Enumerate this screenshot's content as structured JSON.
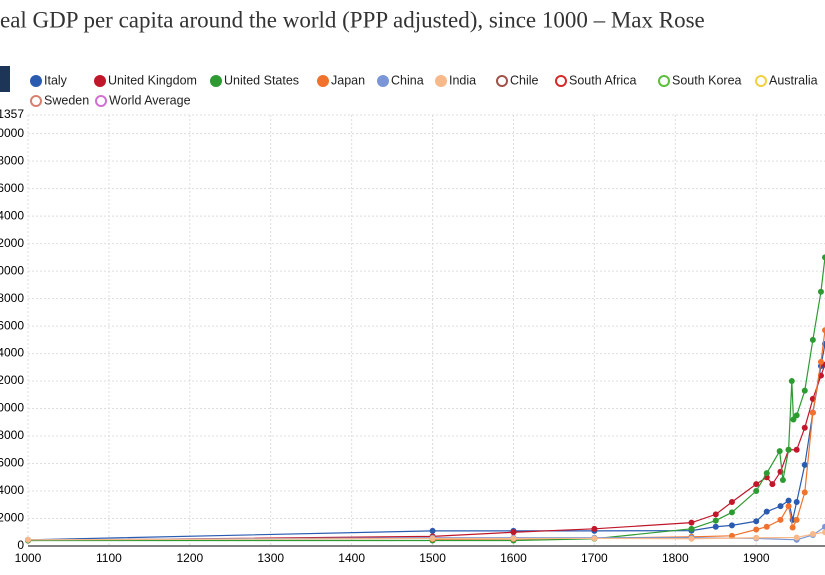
{
  "chart_data": {
    "type": "line",
    "title": "eal GDP per capita around the world (PPP adjusted), since 1000 – Max Rose",
    "xlim": [
      1000,
      1985
    ],
    "xticks": [
      1000,
      1100,
      1200,
      1300,
      1400,
      1500,
      1600,
      1700,
      1800,
      1900
    ],
    "ylim": [
      0,
      31357
    ],
    "yticks": [
      0,
      {
        "value": 2000,
        "label": "2000"
      },
      {
        "value": 4000,
        "label": "4000"
      },
      {
        "value": 6000,
        "label": "6000"
      },
      {
        "value": 8000,
        "label": "8000"
      },
      {
        "value": 10000,
        "label": "0000"
      },
      {
        "value": 12000,
        "label": "2000"
      },
      {
        "value": 14000,
        "label": "4000"
      },
      {
        "value": 16000,
        "label": "6000"
      },
      {
        "value": 18000,
        "label": "8000"
      },
      {
        "value": 20000,
        "label": "0000"
      },
      {
        "value": 22000,
        "label": "2000"
      },
      {
        "value": 24000,
        "label": "4000"
      },
      {
        "value": 26000,
        "label": "6000"
      },
      {
        "value": 28000,
        "label": "8000"
      },
      {
        "value": 30000,
        "label": "0000"
      },
      {
        "value": 31357,
        "label": "1357"
      }
    ],
    "grid": true,
    "series": [
      {
        "name": "Italy",
        "color": "#2a5bb0",
        "disabled": false,
        "x": [
          1000,
          1500,
          1600,
          1700,
          1820,
          1850,
          1870,
          1900,
          1913,
          1930,
          1940,
          1945,
          1950,
          1960,
          1970,
          1980,
          1985
        ],
        "values": [
          450,
          1100,
          1100,
          1100,
          1117,
          1400,
          1500,
          1800,
          2500,
          2900,
          3300,
          1900,
          3200,
          5900,
          9700,
          13100,
          14700
        ]
      },
      {
        "name": "United Kingdom",
        "color": "#c0172a",
        "disabled": false,
        "x": [
          1000,
          1500,
          1600,
          1700,
          1820,
          1850,
          1870,
          1900,
          1913,
          1920,
          1930,
          1940,
          1950,
          1960,
          1970,
          1980,
          1985
        ],
        "values": [
          400,
          700,
          1000,
          1250,
          1700,
          2300,
          3200,
          4500,
          5000,
          4500,
          5400,
          7000,
          7000,
          8600,
          10700,
          12400,
          13200
        ]
      },
      {
        "name": "United States",
        "color": "#2e9b32",
        "disabled": false,
        "x": [
          1000,
          1500,
          1600,
          1700,
          1820,
          1850,
          1870,
          1900,
          1913,
          1929,
          1933,
          1940,
          1944,
          1946,
          1950,
          1960,
          1970,
          1980,
          1985
        ],
        "values": [
          400,
          400,
          400,
          530,
          1250,
          1850,
          2450,
          4000,
          5300,
          6900,
          4800,
          7000,
          12000,
          9200,
          9500,
          11300,
          15000,
          18500,
          21000
        ]
      },
      {
        "name": "Japan",
        "color": "#f0722c",
        "disabled": false,
        "x": [
          1500,
          1600,
          1700,
          1820,
          1870,
          1900,
          1913,
          1930,
          1940,
          1945,
          1950,
          1960,
          1970,
          1980,
          1985
        ],
        "values": [
          500,
          520,
          570,
          670,
          740,
          1200,
          1400,
          1900,
          2900,
          1350,
          1900,
          3900,
          9700,
          13400,
          15700
        ]
      },
      {
        "name": "China",
        "color": "#7b96d6",
        "disabled": false,
        "x": [
          1000,
          1500,
          1600,
          1700,
          1820,
          1900,
          1950,
          1970,
          1985
        ],
        "values": [
          450,
          600,
          600,
          600,
          600,
          550,
          450,
          800,
          1400
        ]
      },
      {
        "name": "India",
        "color": "#f7b98a",
        "disabled": false,
        "x": [
          1000,
          1500,
          1600,
          1700,
          1820,
          1900,
          1950,
          1970,
          1985
        ],
        "values": [
          450,
          550,
          550,
          550,
          530,
          600,
          620,
          870,
          1000
        ]
      },
      {
        "name": "Chile",
        "color": "#a0524a",
        "disabled": true
      },
      {
        "name": "South Africa",
        "color": "#d62a2a",
        "disabled": true
      },
      {
        "name": "South Korea",
        "color": "#5cbf3a",
        "disabled": true
      },
      {
        "name": "Australia",
        "color": "#f0d040",
        "disabled": true
      },
      {
        "name": "Sweden",
        "color": "#d88070",
        "disabled": true
      },
      {
        "name": "World Average",
        "color": "#d070d0",
        "disabled": true
      }
    ]
  }
}
